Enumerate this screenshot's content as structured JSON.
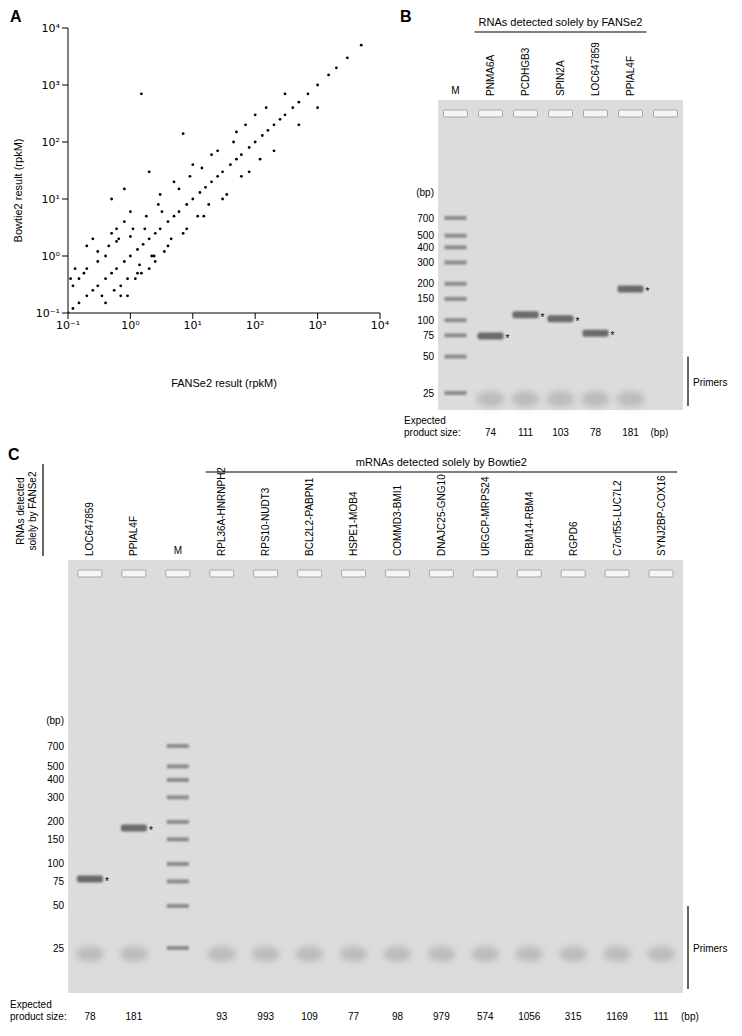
{
  "chart_data": {
    "type": "scatter",
    "title": "A",
    "x_label": "FANSe2 result (rpkM)",
    "y_label": "Bowtie2 result (rpkM)",
    "log": true,
    "xlim": [
      0.1,
      10000
    ],
    "ylim": [
      0.1,
      10000
    ],
    "xticks": [
      {
        "value": 0.1,
        "label": "10⁻¹"
      },
      {
        "value": 1,
        "label": "10⁰"
      },
      {
        "value": 10,
        "label": "10¹"
      },
      {
        "value": 100,
        "label": "10²"
      },
      {
        "value": 1000,
        "label": "10³"
      },
      {
        "value": 10000,
        "label": "10⁴"
      }
    ],
    "yticks": [
      {
        "value": 0.1,
        "label": "10⁻¹"
      },
      {
        "value": 1,
        "label": "10⁰"
      },
      {
        "value": 10,
        "label": "10¹"
      },
      {
        "value": 100,
        "label": "10²"
      },
      {
        "value": 1000,
        "label": "10³"
      },
      {
        "value": 10000,
        "label": "10⁴"
      }
    ],
    "color": "#000000",
    "marker": "circle",
    "x": [
      0.1,
      0.12,
      0.15,
      0.2,
      0.25,
      0.3,
      0.4,
      0.5,
      0.6,
      0.8,
      1,
      1.3,
      1.6,
      2,
      2.5,
      3,
      4,
      5,
      6,
      8,
      10,
      13,
      16,
      20,
      25,
      30,
      40,
      50,
      60,
      80,
      100,
      130,
      160,
      200,
      250,
      300,
      400,
      500,
      700,
      1000,
      1500,
      2000,
      3000,
      5000,
      0.3,
      0.5,
      0.8,
      1,
      0.4,
      0.6,
      1.5,
      2,
      0.3,
      0.2,
      0.15,
      0.7,
      1.2,
      3,
      4,
      5,
      8,
      10,
      15,
      20,
      30,
      50,
      80,
      100,
      200,
      300,
      500,
      1000,
      1.5,
      7,
      0.5,
      0.8,
      2,
      0.9,
      2.5,
      0.2,
      0.25,
      0.12,
      0.18,
      0.35,
      0.45,
      0.55,
      0.65,
      0.9,
      1.1,
      1.4,
      1.8,
      2.2,
      2.8,
      3.5,
      4.5,
      6,
      7,
      9,
      12,
      14,
      18,
      25,
      35,
      45,
      60,
      70,
      120,
      150,
      0.11,
      0.13,
      0.4,
      0.7,
      1,
      1.3,
      1.7,
      2.4,
      3.2,
      0.6
    ],
    "values": [
      0.1,
      0.12,
      0.15,
      0.2,
      0.25,
      0.3,
      0.4,
      0.5,
      0.6,
      0.8,
      1,
      1.3,
      1.6,
      2,
      2.5,
      3,
      4,
      5,
      6,
      8,
      10,
      13,
      16,
      20,
      25,
      30,
      40,
      50,
      60,
      80,
      100,
      130,
      160,
      200,
      250,
      300,
      400,
      500,
      700,
      1000,
      1500,
      2000,
      3000,
      5000,
      1.2,
      2.5,
      4,
      6,
      0.15,
      3,
      0.5,
      0.6,
      0.8,
      0.6,
      0.4,
      0.3,
      0.4,
      12,
      1.5,
      20,
      3,
      40,
      5,
      60,
      10,
      150,
      30,
      300,
      70,
      700,
      200,
      400,
      700,
      140,
      10,
      15,
      30,
      0.2,
      0.8,
      1.5,
      2,
      0.3,
      0.5,
      0.2,
      1.5,
      0.25,
      2,
      0.4,
      3,
      0.7,
      5,
      1,
      8,
      1.2,
      2,
      15,
      2.5,
      25,
      5,
      35,
      8,
      70,
      12,
      100,
      25,
      200,
      50,
      400,
      0.4,
      0.6,
      1,
      0.2,
      2.2,
      0.5,
      3,
      1,
      6,
      1.8
    ]
  },
  "gels": [
    {
      "title": "B",
      "unit_label": "(bp)",
      "primers_label": "Primers",
      "size_row_label": "Expected product size:",
      "size_unit": "(bp)",
      "band_mark": "*",
      "lanes": [
        {
          "name": "M",
          "ladder": [
            700,
            500,
            400,
            300,
            200,
            150,
            100,
            75,
            50,
            25
          ]
        },
        {
          "group": "RNAs detected solely by FANSe2",
          "items": [
            {
              "name": "PNMA6A",
              "expected_size": 74,
              "band": true
            },
            {
              "name": "PCDHGB3",
              "expected_size": 111,
              "band": true
            },
            {
              "name": "SPIN2A",
              "expected_size": 103,
              "band": true
            },
            {
              "name": "LOC647859",
              "expected_size": 78,
              "band": true
            },
            {
              "name": "PPIAL4F",
              "expected_size": 181,
              "band": true
            }
          ]
        },
        {
          "name": null
        }
      ]
    },
    {
      "title": "C",
      "unit_label": "(bp)",
      "primers_label": "Primers",
      "size_row_label": "Expected product size:",
      "size_unit": "(bp)",
      "band_mark": "*",
      "lanes": [
        {
          "group": "RNAs detected solely by FANSe2",
          "items": [
            {
              "name": "LOC647859",
              "expected_size": 78,
              "band": true
            },
            {
              "name": "PPIAL4F",
              "expected_size": 181,
              "band": true
            }
          ]
        },
        {
          "name": "M",
          "ladder": [
            700,
            500,
            400,
            300,
            200,
            150,
            100,
            75,
            50,
            25
          ]
        },
        {
          "group": "mRNAs detected solely by Bowtie2",
          "items": [
            {
              "name": "RPL36A-HNRNPH2",
              "expected_size": 93,
              "band": false
            },
            {
              "name": "RPS10-NUDT3",
              "expected_size": 993,
              "band": false
            },
            {
              "name": "BCL2L2-PABPN1",
              "expected_size": 109,
              "band": false
            },
            {
              "name": "HSPE1-MOB4",
              "expected_size": 77,
              "band": false
            },
            {
              "name": "COMMD3-BMI1",
              "expected_size": 98,
              "band": false
            },
            {
              "name": "DNAJC25-GNG10",
              "expected_size": 979,
              "band": false
            },
            {
              "name": "URGCP-MRPS24",
              "expected_size": 574,
              "band": false
            },
            {
              "name": "RBM14-RBM4",
              "expected_size": 1056,
              "band": false
            },
            {
              "name": "RGPD6",
              "expected_size": 315,
              "band": false
            },
            {
              "name": "C7orf55-LUC7L2",
              "expected_size": 1169,
              "band": false
            },
            {
              "name": "SYNJ2BP-COX16",
              "expected_size": 111,
              "band": false
            }
          ]
        }
      ]
    }
  ]
}
